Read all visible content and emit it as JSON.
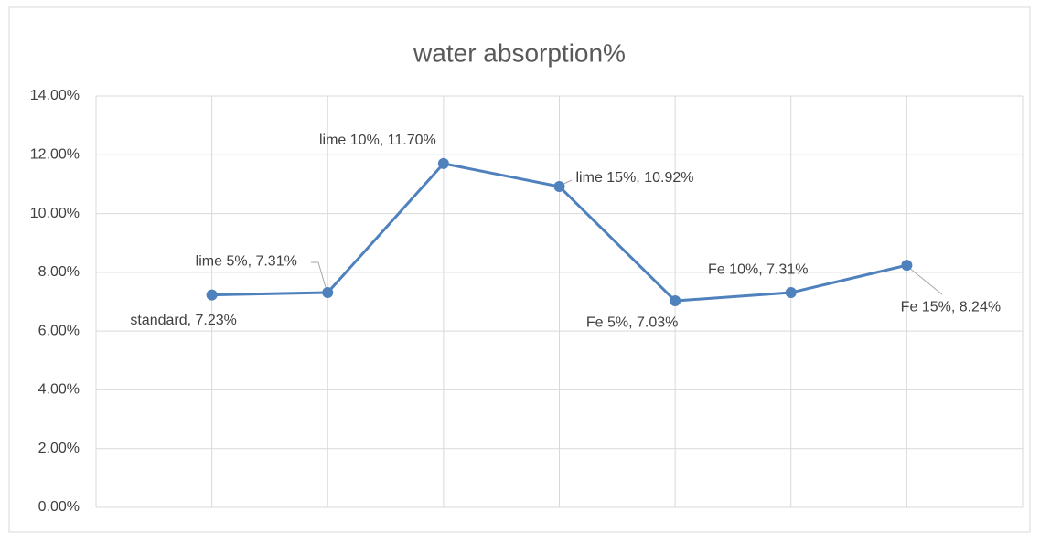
{
  "chart_data": {
    "type": "line",
    "title": "water absorption%",
    "series": [
      {
        "name": null,
        "color": "#4f81bd",
        "values": [
          7.23,
          7.31,
          11.7,
          10.92,
          7.03,
          7.31,
          8.24
        ],
        "value_labels": [
          "standard, 7.23%",
          "lime 5%, 7.31%",
          "lime 10%, 11.70%",
          "lime 15%, 10.92%",
          "Fe 5%, 7.03%",
          "Fe 10%, 7.31%",
          "Fe 15%, 8.24%"
        ]
      }
    ],
    "ylim": [
      0,
      14
    ],
    "yticks": [
      {
        "value": 0,
        "label": "0.00%"
      },
      {
        "value": 2,
        "label": "2.00%"
      },
      {
        "value": 4,
        "label": "4.00%"
      },
      {
        "value": 6,
        "label": "6.00%"
      },
      {
        "value": 8,
        "label": "8.00%"
      },
      {
        "value": 10,
        "label": "10.00%"
      },
      {
        "value": 12,
        "label": "12.00%"
      },
      {
        "value": 14,
        "label": "14.00%"
      }
    ],
    "grid": true
  }
}
